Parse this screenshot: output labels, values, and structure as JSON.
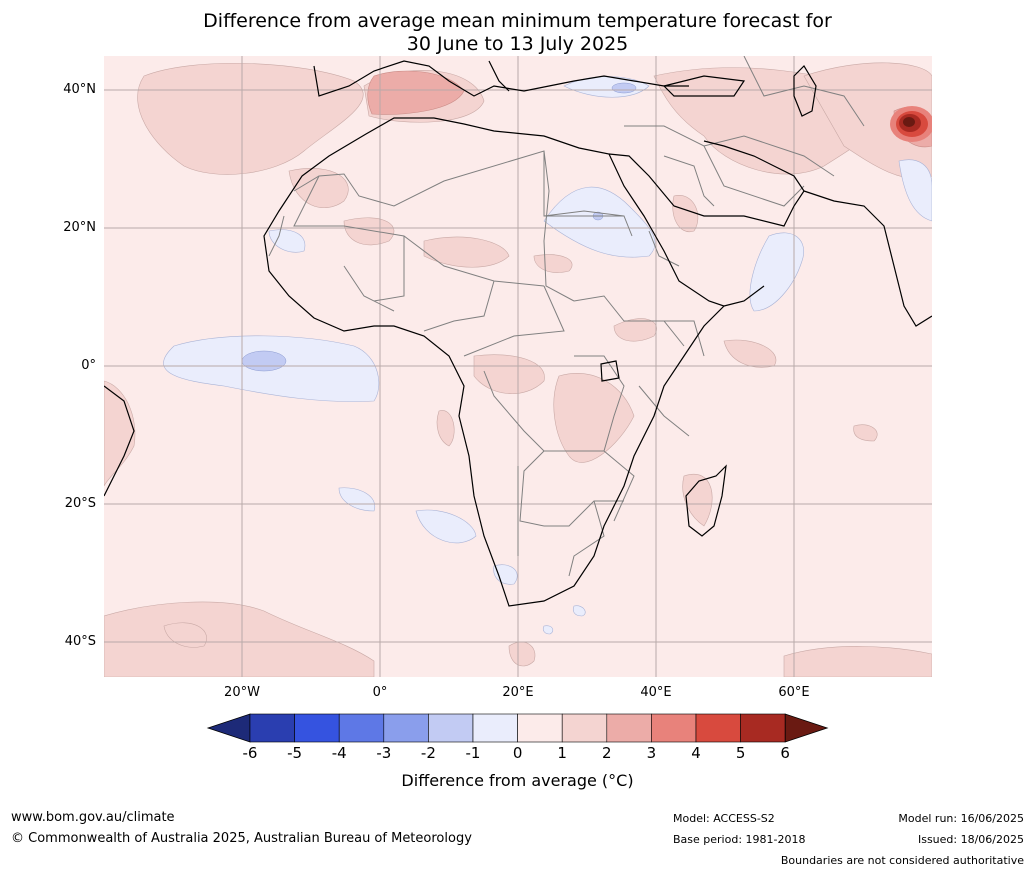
{
  "title": {
    "line1": "Difference from average mean minimum temperature forecast for",
    "line2": "30 June to 13 July 2025"
  },
  "map": {
    "lat_labels": [
      "40°N",
      "20°N",
      "0°",
      "20°S",
      "40°S"
    ],
    "lon_labels": [
      "20°W",
      "0°",
      "20°E",
      "40°E",
      "60°E"
    ],
    "extent": {
      "lon_min": -40,
      "lon_max": 80,
      "lat_min": -45,
      "lat_max": 45
    }
  },
  "colorbar": {
    "ticks": [
      "-6",
      "-5",
      "-4",
      "-3",
      "-2",
      "-1",
      "0",
      "1",
      "2",
      "3",
      "4",
      "5",
      "6"
    ],
    "colors": [
      "#1d2a78",
      "#2a3eb0",
      "#3553e0",
      "#5e78e6",
      "#8a9eec",
      "#c2cbf3",
      "#eaedfc",
      "#fcebea",
      "#f4d4d1",
      "#ecaca8",
      "#e8827b",
      "#d84a3e",
      "#a82a22",
      "#6a1a12"
    ],
    "label": "Difference from average (°C)"
  },
  "footer": {
    "website": "www.bom.gov.au/climate",
    "copyright": "© Commonwealth of Australia 2025, Australian Bureau of Meteorology",
    "model": "Model: ACCESS-S2",
    "base_period": "Base period: 1981-2018",
    "model_run": "Model run: 16/06/2025",
    "issued": "Issued: 18/06/2025",
    "boundaries_note": "Boundaries are not considered authoritative"
  }
}
